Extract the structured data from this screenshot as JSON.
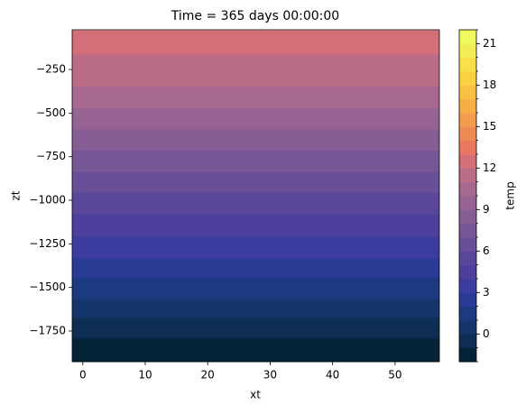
{
  "chart_data": {
    "type": "contourf",
    "title": "Time = 365 days 00:00:00",
    "x_label": "xt",
    "y_label": "zt",
    "colorbar_label": "temp",
    "zt": [
      -1925,
      -1792,
      -1673,
      -1564,
      -1445,
      -1331,
      -1207,
      -1078,
      -954,
      -835,
      -710,
      -591,
      -472,
      -348,
      -162,
      -25
    ],
    "temp": [
      -2,
      -1,
      0,
      1,
      2,
      3,
      4,
      5,
      6,
      7,
      8,
      9,
      10,
      11,
      12
    ],
    "xlim": [
      -1.7,
      57.1
    ],
    "xticks": [
      0,
      10,
      20,
      30,
      40,
      50
    ],
    "ylim": [
      -1926,
      -22
    ],
    "yticks": [
      {
        "value": -1750,
        "label": "−1750"
      },
      {
        "value": -1500,
        "label": "−1500"
      },
      {
        "value": -1250,
        "label": "−1250"
      },
      {
        "value": -1000,
        "label": "−1000"
      },
      {
        "value": -750,
        "label": "−750"
      },
      {
        "value": -500,
        "label": "−500"
      },
      {
        "value": -250,
        "label": "−250"
      }
    ],
    "clim": [
      -2,
      22
    ],
    "levels": [
      -2,
      -1,
      0,
      1,
      2,
      3,
      4,
      5,
      6,
      7,
      8,
      9,
      10,
      11,
      12,
      13,
      14,
      15,
      16,
      17,
      18,
      19,
      20,
      21,
      22
    ],
    "colors": [
      "#052336",
      "#0d2d52",
      "#14366b",
      "#1c3a80",
      "#2a3b95",
      "#3c3c9e",
      "#4c409c",
      "#5a479a",
      "#684f98",
      "#775696",
      "#865d94",
      "#966392",
      "#a7688f",
      "#bb6d88",
      "#d37077",
      "#e8785f",
      "#f08a55",
      "#f49c4d",
      "#f7ae47",
      "#f9c043",
      "#f9d143",
      "#f7e04a",
      "#f2ed55",
      "#eefa5e"
    ],
    "cticks": [
      0,
      3,
      6,
      9,
      12,
      15,
      18,
      21
    ]
  }
}
